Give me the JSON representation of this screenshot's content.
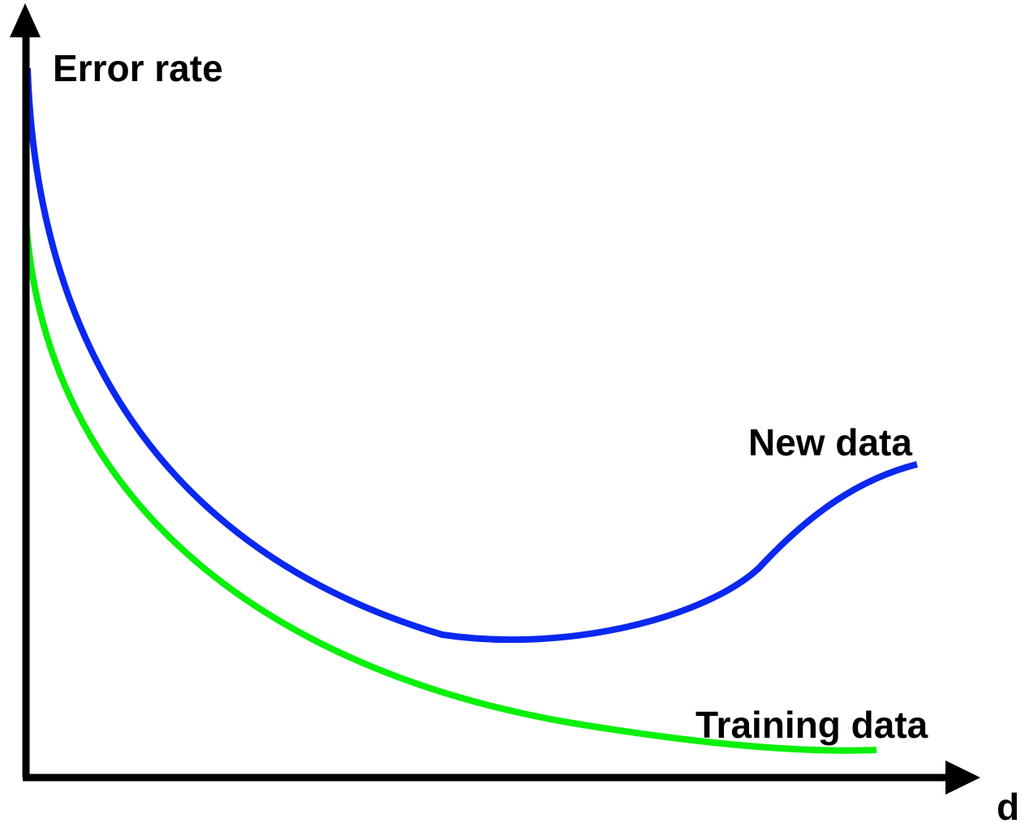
{
  "axes": {
    "y_label": "Error rate",
    "x_label": "d"
  },
  "curves": [
    {
      "label": "New data"
    },
    {
      "label": "Training data"
    }
  ]
}
